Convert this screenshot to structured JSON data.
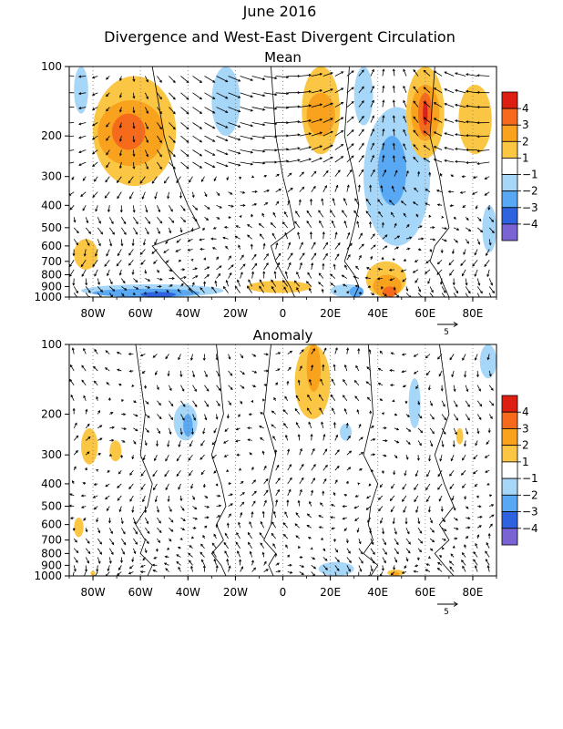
{
  "title_line1": "June 2016",
  "title_line2": "Divergence and West-East Divergent Circulation",
  "colorbar_labels": [
    "4",
    "3",
    "2",
    "1",
    "−1",
    "−2",
    "−3",
    "−4"
  ],
  "colorbar_colors": [
    "#dd1e12",
    "#f66a1b",
    "#f8a21e",
    "#fbc643",
    "#ffffff",
    "#a6d6f8",
    "#59a8f4",
    "#2f62de",
    "#7a63d3"
  ],
  "vector_reference": "5",
  "chart_data": [
    {
      "type": "heatmap",
      "title": "Mean",
      "x_ticks": [
        "80W",
        "60W",
        "40W",
        "20W",
        "0",
        "20E",
        "40E",
        "60E",
        "80E"
      ],
      "x_tick_values": [
        -80,
        -60,
        -40,
        -20,
        0,
        20,
        40,
        60,
        80
      ],
      "xlim": [
        -90,
        90
      ],
      "y_ticks": [
        "100",
        "200",
        "300",
        "400",
        "500",
        "600",
        "700",
        "800",
        "900",
        "1000"
      ],
      "y_tick_values": [
        100,
        200,
        300,
        400,
        500,
        600,
        700,
        800,
        900,
        1000
      ],
      "y_scale": "log-pressure",
      "color_levels": [
        -4,
        -3,
        -2,
        -1,
        1,
        2,
        3,
        4
      ],
      "vector_reference": 5,
      "fields": [
        {
          "x": [
            -80,
            -45
          ],
          "p": [
            110,
            330
          ],
          "level": 1
        },
        {
          "x": [
            -78,
            -50
          ],
          "p": [
            140,
            270
          ],
          "level": 2
        },
        {
          "x": [
            -72,
            -58
          ],
          "p": [
            160,
            230
          ],
          "level": 3
        },
        {
          "x": [
            -88,
            -78
          ],
          "p": [
            560,
            760
          ],
          "level": 1
        },
        {
          "x": [
            -88,
            -82
          ],
          "p": [
            100,
            160
          ],
          "level": -1
        },
        {
          "x": [
            -30,
            -18
          ],
          "p": [
            100,
            200
          ],
          "level": -1
        },
        {
          "x": [
            8,
            24
          ],
          "p": [
            100,
            240
          ],
          "level": 1
        },
        {
          "x": [
            10,
            22
          ],
          "p": [
            130,
            200
          ],
          "level": 2
        },
        {
          "x": [
            30,
            38
          ],
          "p": [
            100,
            180
          ],
          "level": -1
        },
        {
          "x": [
            34,
            62
          ],
          "p": [
            150,
            600
          ],
          "level": -1
        },
        {
          "x": [
            40,
            52
          ],
          "p": [
            200,
            400
          ],
          "level": -2
        },
        {
          "x": [
            52,
            68
          ],
          "p": [
            100,
            250
          ],
          "level": 1
        },
        {
          "x": [
            54,
            66
          ],
          "p": [
            120,
            210
          ],
          "level": 2
        },
        {
          "x": [
            57,
            63
          ],
          "p": [
            130,
            200
          ],
          "level": 3
        },
        {
          "x": [
            59,
            61
          ],
          "p": [
            140,
            180
          ],
          "level": 4
        },
        {
          "x": [
            74,
            88
          ],
          "p": [
            120,
            240
          ],
          "level": 1
        },
        {
          "x": [
            84,
            90
          ],
          "p": [
            400,
            640
          ],
          "level": -1
        },
        {
          "x": [
            -85,
            -25
          ],
          "p": [
            880,
            1000
          ],
          "level": -1
        },
        {
          "x": [
            -80,
            -35
          ],
          "p": [
            920,
            1000
          ],
          "level": -2
        },
        {
          "x": [
            -60,
            -45
          ],
          "p": [
            950,
            1000
          ],
          "level": -3
        },
        {
          "x": [
            -15,
            12
          ],
          "p": [
            850,
            960
          ],
          "level": 1
        },
        {
          "x": [
            20,
            34
          ],
          "p": [
            880,
            1000
          ],
          "level": -1
        },
        {
          "x": [
            28,
            34
          ],
          "p": [
            900,
            1000
          ],
          "level": -2
        },
        {
          "x": [
            35,
            52
          ],
          "p": [
            700,
            1000
          ],
          "level": 1
        },
        {
          "x": [
            38,
            50
          ],
          "p": [
            800,
            1000
          ],
          "level": 2
        },
        {
          "x": [
            42,
            48
          ],
          "p": [
            900,
            1000
          ],
          "level": 3
        }
      ]
    },
    {
      "type": "heatmap",
      "title": "Anomaly",
      "x_ticks": [
        "80W",
        "60W",
        "40W",
        "20W",
        "0",
        "20E",
        "40E",
        "60E",
        "80E"
      ],
      "x_tick_values": [
        -80,
        -60,
        -40,
        -20,
        0,
        20,
        40,
        60,
        80
      ],
      "xlim": [
        -90,
        90
      ],
      "y_ticks": [
        "100",
        "200",
        "300",
        "400",
        "500",
        "600",
        "700",
        "800",
        "900",
        "1000"
      ],
      "y_tick_values": [
        100,
        200,
        300,
        400,
        500,
        600,
        700,
        800,
        900,
        1000
      ],
      "y_scale": "log-pressure",
      "color_levels": [
        -4,
        -3,
        -2,
        -1,
        1,
        2,
        3,
        4
      ],
      "vector_reference": 5,
      "fields": [
        {
          "x": [
            5,
            20
          ],
          "p": [
            100,
            210
          ],
          "level": 1
        },
        {
          "x": [
            10,
            16
          ],
          "p": [
            100,
            160
          ],
          "level": 2
        },
        {
          "x": [
            -85,
            -78
          ],
          "p": [
            230,
            330
          ],
          "level": 1
        },
        {
          "x": [
            -73,
            -68
          ],
          "p": [
            260,
            320
          ],
          "level": 1
        },
        {
          "x": [
            -46,
            -36
          ],
          "p": [
            180,
            260
          ],
          "level": -1
        },
        {
          "x": [
            -42,
            -38
          ],
          "p": [
            200,
            250
          ],
          "level": -2
        },
        {
          "x": [
            -88,
            -84
          ],
          "p": [
            560,
            680
          ],
          "level": 1
        },
        {
          "x": [
            53,
            58
          ],
          "p": [
            140,
            230
          ],
          "level": -1
        },
        {
          "x": [
            83,
            90
          ],
          "p": [
            100,
            140
          ],
          "level": -1
        },
        {
          "x": [
            24,
            29
          ],
          "p": [
            220,
            260
          ],
          "level": -1
        },
        {
          "x": [
            73,
            76
          ],
          "p": [
            230,
            270
          ],
          "level": 1
        },
        {
          "x": [
            15,
            30
          ],
          "p": [
            870,
            1000
          ],
          "level": -1
        },
        {
          "x": [
            44,
            51
          ],
          "p": [
            940,
            1000
          ],
          "level": 1
        },
        {
          "x": [
            46,
            49
          ],
          "p": [
            960,
            1000
          ],
          "level": 2
        },
        {
          "x": [
            -81,
            -79
          ],
          "p": [
            950,
            1000
          ],
          "level": 1
        }
      ]
    }
  ]
}
